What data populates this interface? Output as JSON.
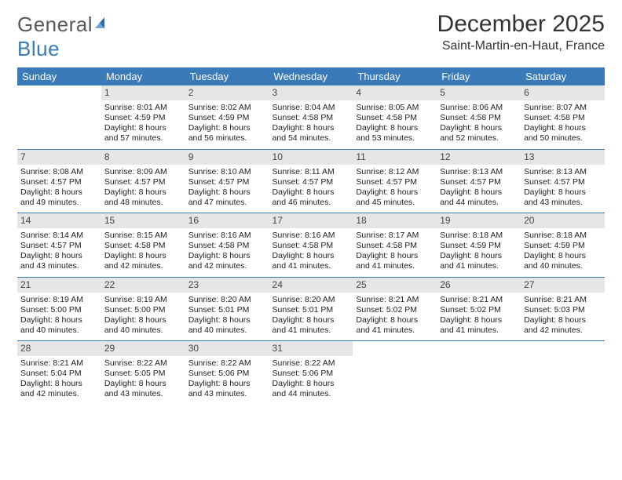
{
  "brand": {
    "part1": "General",
    "part2": "Blue"
  },
  "title": "December 2025",
  "location": "Saint-Martin-en-Haut, France",
  "colors": {
    "header_bg": "#3a7ab8",
    "header_fg": "#ffffff",
    "daynum_bg": "#e6e6e6",
    "row_border": "#3a7ab8",
    "text": "#222222",
    "brand_gray": "#5a5a5a",
    "brand_blue": "#3a7ab8",
    "page_bg": "#ffffff"
  },
  "weekdays": [
    "Sunday",
    "Monday",
    "Tuesday",
    "Wednesday",
    "Thursday",
    "Friday",
    "Saturday"
  ],
  "weeks": [
    [
      null,
      {
        "n": "1",
        "sr": "8:01 AM",
        "ss": "4:59 PM",
        "dl": "8 hours and 57 minutes."
      },
      {
        "n": "2",
        "sr": "8:02 AM",
        "ss": "4:59 PM",
        "dl": "8 hours and 56 minutes."
      },
      {
        "n": "3",
        "sr": "8:04 AM",
        "ss": "4:58 PM",
        "dl": "8 hours and 54 minutes."
      },
      {
        "n": "4",
        "sr": "8:05 AM",
        "ss": "4:58 PM",
        "dl": "8 hours and 53 minutes."
      },
      {
        "n": "5",
        "sr": "8:06 AM",
        "ss": "4:58 PM",
        "dl": "8 hours and 52 minutes."
      },
      {
        "n": "6",
        "sr": "8:07 AM",
        "ss": "4:58 PM",
        "dl": "8 hours and 50 minutes."
      }
    ],
    [
      {
        "n": "7",
        "sr": "8:08 AM",
        "ss": "4:57 PM",
        "dl": "8 hours and 49 minutes."
      },
      {
        "n": "8",
        "sr": "8:09 AM",
        "ss": "4:57 PM",
        "dl": "8 hours and 48 minutes."
      },
      {
        "n": "9",
        "sr": "8:10 AM",
        "ss": "4:57 PM",
        "dl": "8 hours and 47 minutes."
      },
      {
        "n": "10",
        "sr": "8:11 AM",
        "ss": "4:57 PM",
        "dl": "8 hours and 46 minutes."
      },
      {
        "n": "11",
        "sr": "8:12 AM",
        "ss": "4:57 PM",
        "dl": "8 hours and 45 minutes."
      },
      {
        "n": "12",
        "sr": "8:13 AM",
        "ss": "4:57 PM",
        "dl": "8 hours and 44 minutes."
      },
      {
        "n": "13",
        "sr": "8:13 AM",
        "ss": "4:57 PM",
        "dl": "8 hours and 43 minutes."
      }
    ],
    [
      {
        "n": "14",
        "sr": "8:14 AM",
        "ss": "4:57 PM",
        "dl": "8 hours and 43 minutes."
      },
      {
        "n": "15",
        "sr": "8:15 AM",
        "ss": "4:58 PM",
        "dl": "8 hours and 42 minutes."
      },
      {
        "n": "16",
        "sr": "8:16 AM",
        "ss": "4:58 PM",
        "dl": "8 hours and 42 minutes."
      },
      {
        "n": "17",
        "sr": "8:16 AM",
        "ss": "4:58 PM",
        "dl": "8 hours and 41 minutes."
      },
      {
        "n": "18",
        "sr": "8:17 AM",
        "ss": "4:58 PM",
        "dl": "8 hours and 41 minutes."
      },
      {
        "n": "19",
        "sr": "8:18 AM",
        "ss": "4:59 PM",
        "dl": "8 hours and 41 minutes."
      },
      {
        "n": "20",
        "sr": "8:18 AM",
        "ss": "4:59 PM",
        "dl": "8 hours and 40 minutes."
      }
    ],
    [
      {
        "n": "21",
        "sr": "8:19 AM",
        "ss": "5:00 PM",
        "dl": "8 hours and 40 minutes."
      },
      {
        "n": "22",
        "sr": "8:19 AM",
        "ss": "5:00 PM",
        "dl": "8 hours and 40 minutes."
      },
      {
        "n": "23",
        "sr": "8:20 AM",
        "ss": "5:01 PM",
        "dl": "8 hours and 40 minutes."
      },
      {
        "n": "24",
        "sr": "8:20 AM",
        "ss": "5:01 PM",
        "dl": "8 hours and 41 minutes."
      },
      {
        "n": "25",
        "sr": "8:21 AM",
        "ss": "5:02 PM",
        "dl": "8 hours and 41 minutes."
      },
      {
        "n": "26",
        "sr": "8:21 AM",
        "ss": "5:02 PM",
        "dl": "8 hours and 41 minutes."
      },
      {
        "n": "27",
        "sr": "8:21 AM",
        "ss": "5:03 PM",
        "dl": "8 hours and 42 minutes."
      }
    ],
    [
      {
        "n": "28",
        "sr": "8:21 AM",
        "ss": "5:04 PM",
        "dl": "8 hours and 42 minutes."
      },
      {
        "n": "29",
        "sr": "8:22 AM",
        "ss": "5:05 PM",
        "dl": "8 hours and 43 minutes."
      },
      {
        "n": "30",
        "sr": "8:22 AM",
        "ss": "5:06 PM",
        "dl": "8 hours and 43 minutes."
      },
      {
        "n": "31",
        "sr": "8:22 AM",
        "ss": "5:06 PM",
        "dl": "8 hours and 44 minutes."
      },
      null,
      null,
      null
    ]
  ],
  "labels": {
    "sunrise": "Sunrise:",
    "sunset": "Sunset:",
    "daylight": "Daylight:"
  }
}
